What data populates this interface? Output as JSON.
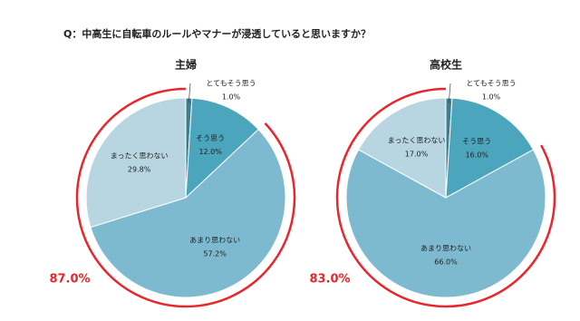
{
  "title": "Q：中高生に自転車のルールやマナーが浸透していると思いますか？",
  "chart_data": [
    {
      "type": "pie",
      "title": "主婦",
      "categories": [
        "とてもそう思う",
        "そう思う",
        "あまり思わない",
        "まったく思わない"
      ],
      "values": [
        1,
        12,
        57.2,
        29.8
      ],
      "value_labels": [
        "1.0%",
        "12.0%",
        "57.2%",
        "29.8%"
      ],
      "colors": [
        "#3b7f93",
        "#4ba5bd",
        "#7dbad0",
        "#b8d6e2"
      ],
      "annotation": {
        "value": 87,
        "label": "87.0%"
      }
    },
    {
      "type": "pie",
      "title": "高校生",
      "categories": [
        "とてもそう思う",
        "そう思う",
        "あまり思わない",
        "まったく思わない"
      ],
      "values": [
        1,
        16,
        66,
        17
      ],
      "value_labels": [
        "1.0%",
        "16.0%",
        "66.0%",
        "17.0%"
      ],
      "colors": [
        "#3b7f93",
        "#4ba5bd",
        "#7dbad0",
        "#b8d6e2"
      ],
      "annotation": {
        "value": 83,
        "label": "83.0%"
      }
    }
  ]
}
